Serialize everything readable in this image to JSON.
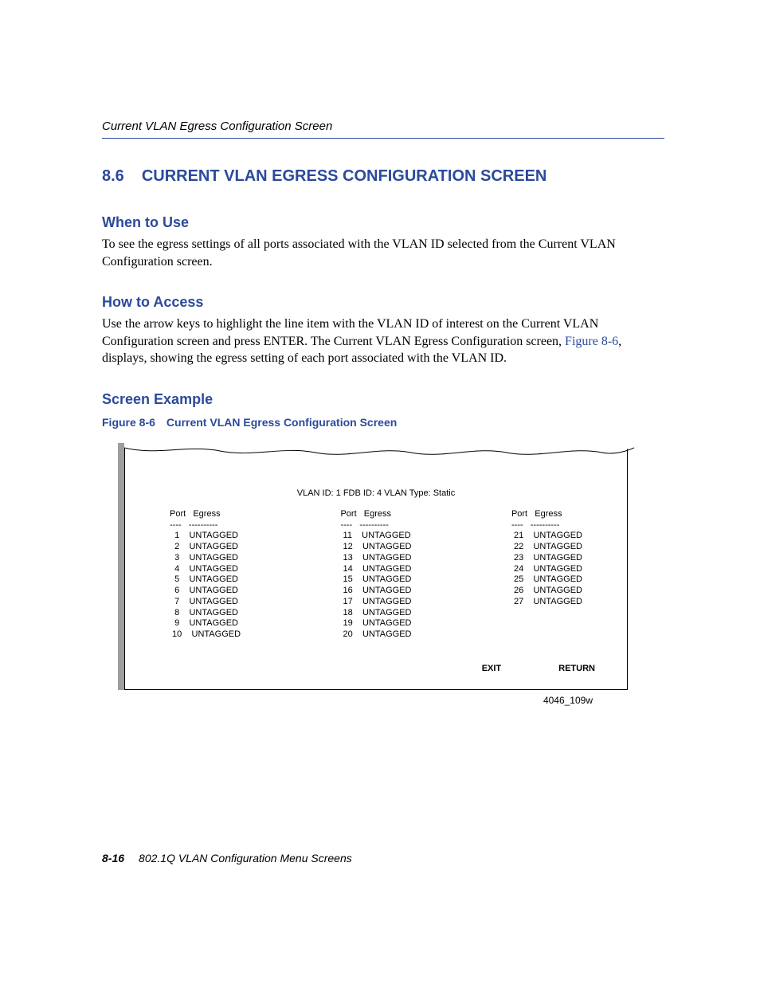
{
  "colors": {
    "accent": "#2b4a9b",
    "shadow": "#9e9e9e",
    "text": "#000000",
    "background": "#ffffff"
  },
  "header": {
    "running": "Current VLAN Egress Configuration Screen"
  },
  "section": {
    "number": "8.6",
    "title": "CURRENT VLAN EGRESS CONFIGURATION SCREEN"
  },
  "when": {
    "heading": "When to Use",
    "text": "To see the egress settings of all ports associated with the VLAN ID selected from the Current VLAN Configuration screen."
  },
  "how": {
    "heading": "How to Access",
    "text_before": "Use the arrow keys to highlight the line item with the VLAN ID of interest on the Current VLAN Configuration screen and press ENTER. The Current VLAN Egress Configuration screen, ",
    "xref": "Figure 8-6",
    "text_after": ", displays, showing the egress setting of each port associated with the VLAN ID."
  },
  "example": {
    "heading": "Screen Example"
  },
  "figure": {
    "number": "Figure 8-6",
    "title": "Current VLAN Egress Configuration Screen",
    "code": "4046_109w",
    "terminal": {
      "info_line": "VLAN ID: 1  FDB ID: 4  VLAN Type: Static",
      "col_header_port": "Port",
      "col_header_egress": "Egress",
      "dash_port": "----",
      "dash_egress": "----------",
      "columns": [
        {
          "rows": [
            {
              "port": "1",
              "egress": "UNTAGGED"
            },
            {
              "port": "2",
              "egress": "UNTAGGED"
            },
            {
              "port": "3",
              "egress": "UNTAGGED"
            },
            {
              "port": "4",
              "egress": "UNTAGGED"
            },
            {
              "port": "5",
              "egress": "UNTAGGED"
            },
            {
              "port": "6",
              "egress": "UNTAGGED"
            },
            {
              "port": "7",
              "egress": "UNTAGGED"
            },
            {
              "port": "8",
              "egress": "UNTAGGED"
            },
            {
              "port": "9",
              "egress": "UNTAGGED"
            },
            {
              "port": "10",
              "egress": "UNTAGGED"
            }
          ]
        },
        {
          "rows": [
            {
              "port": "11",
              "egress": "UNTAGGED"
            },
            {
              "port": "12",
              "egress": "UNTAGGED"
            },
            {
              "port": "13",
              "egress": "UNTAGGED"
            },
            {
              "port": "14",
              "egress": "UNTAGGED"
            },
            {
              "port": "15",
              "egress": "UNTAGGED"
            },
            {
              "port": "16",
              "egress": "UNTAGGED"
            },
            {
              "port": "17",
              "egress": "UNTAGGED"
            },
            {
              "port": "18",
              "egress": "UNTAGGED"
            },
            {
              "port": "19",
              "egress": "UNTAGGED"
            },
            {
              "port": "20",
              "egress": "UNTAGGED"
            }
          ]
        },
        {
          "rows": [
            {
              "port": "21",
              "egress": "UNTAGGED"
            },
            {
              "port": "22",
              "egress": "UNTAGGED"
            },
            {
              "port": "23",
              "egress": "UNTAGGED"
            },
            {
              "port": "24",
              "egress": "UNTAGGED"
            },
            {
              "port": "25",
              "egress": "UNTAGGED"
            },
            {
              "port": "26",
              "egress": "UNTAGGED"
            },
            {
              "port": "27",
              "egress": "UNTAGGED"
            }
          ]
        }
      ],
      "footer": {
        "exit": "EXIT",
        "return": "RETURN"
      }
    }
  },
  "footer": {
    "page": "8-16",
    "chapter": "802.1Q VLAN Configuration Menu Screens"
  }
}
